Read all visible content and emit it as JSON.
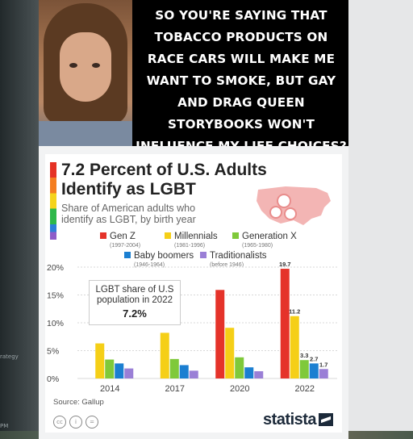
{
  "meme": {
    "text": "SO YOU'RE SAYING THAT TOBACCO PRODUCTS ON RACE CARS WILL MAKE ME WANT TO SMOKE, BUT GAY AND DRAG QUEEN STORYBOOKS WON'T INFLUENCE MY LIFE CHOICES?"
  },
  "background": {
    "left_text_1": "rategy",
    "left_text_2": "PM"
  },
  "chart_data": {
    "type": "bar",
    "title": "7.2 Percent of U.S. Adults Identify as LGBT",
    "subtitle": "Share of American adults who identify as LGBT, by birth year",
    "categories": [
      "2014",
      "2017",
      "2020",
      "2022"
    ],
    "series": [
      {
        "name": "Gen Z",
        "years": "(1997-2004)",
        "color": "#e5332a",
        "values": [
          null,
          null,
          15.9,
          19.7
        ]
      },
      {
        "name": "Millennials",
        "years": "(1981-1996)",
        "color": "#f5cf17",
        "values": [
          6.3,
          8.2,
          9.1,
          11.2
        ]
      },
      {
        "name": "Generation X",
        "years": "(1965-1980)",
        "color": "#7fc93a",
        "values": [
          3.4,
          3.5,
          3.8,
          3.3
        ]
      },
      {
        "name": "Baby boomers",
        "years": "(1946-1964)",
        "color": "#1b7fd1",
        "values": [
          2.7,
          2.4,
          2.0,
          2.7
        ]
      },
      {
        "name": "Traditionalists",
        "years": "(before 1946)",
        "color": "#9a7fd6",
        "values": [
          1.8,
          1.4,
          1.3,
          1.7
        ]
      }
    ],
    "data_labels": {
      "2022": [
        "19.7",
        "11.2",
        "3.3",
        "2.7",
        "1.7"
      ]
    },
    "y_ticks": [
      "0%",
      "5%",
      "10%",
      "15%",
      "20%"
    ],
    "ylim": [
      0,
      20
    ],
    "annotation": {
      "label": "LGBT share of U.S population in 2022",
      "value": "7.2%"
    },
    "source": "Source: Gallup",
    "brand": "statista"
  }
}
